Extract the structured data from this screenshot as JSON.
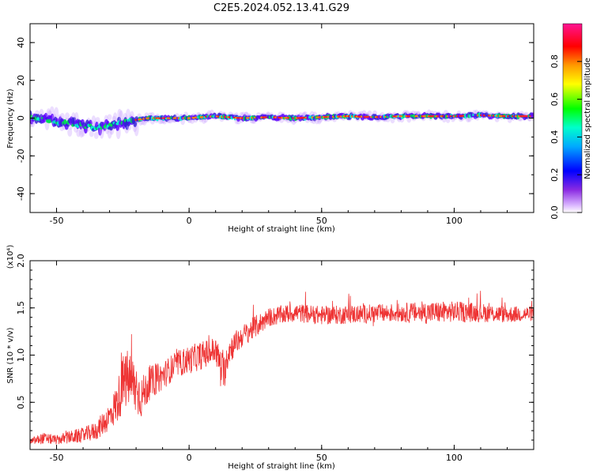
{
  "title": "C2E5.2024.052.13.41.G29",
  "chart_data": [
    {
      "type": "heatmap",
      "xlabel": "Height of straight line (km)",
      "ylabel": "Frequency (Hz)",
      "xlim": [
        -60,
        130
      ],
      "ylim": [
        -50,
        50
      ],
      "xticks": [
        -50,
        0,
        50,
        100
      ],
      "yticks": [
        -40,
        -20,
        0,
        20,
        40
      ],
      "xtick_labels": [
        "-50",
        "0",
        "50",
        "100"
      ],
      "ytick_labels": [
        "-40",
        "-20",
        "0",
        "20",
        "40"
      ],
      "grid": false,
      "colorbar": {
        "label": "Normalized spectral amplitude",
        "range": [
          0,
          1
        ],
        "ticks": [
          0.0,
          0.2,
          0.4,
          0.6,
          0.8
        ],
        "tick_labels": [
          "0.0",
          "0.2",
          "0.4",
          "0.6",
          "0.8"
        ],
        "colors": [
          "#ffffff",
          "#8a2be2",
          "#0000ff",
          "#00ffff",
          "#00ff00",
          "#ffff00",
          "#ff0000",
          "#ff1493"
        ]
      },
      "ridge": {
        "x": [
          -58,
          -50,
          -45,
          -40,
          -35,
          -30,
          -25,
          -20,
          -15,
          -10,
          -5,
          0,
          10,
          20,
          30,
          40,
          50,
          60,
          70,
          80,
          90,
          100,
          110,
          120,
          130
        ],
        "y": [
          0,
          -2,
          -3,
          -4,
          -5,
          -4,
          -2,
          -1,
          0,
          0,
          0,
          0,
          1,
          0,
          0.5,
          0,
          0.5,
          1,
          0.5,
          1,
          1,
          1,
          1.5,
          1,
          1
        ]
      }
    },
    {
      "type": "line",
      "xlabel": "Height of straight line (km)",
      "ylabel": "SNR (10 * v/v)",
      "y_multiplier": "(x10⁴)",
      "xlim": [
        -60,
        130
      ],
      "ylim": [
        0,
        2.0
      ],
      "xticks": [
        -50,
        0,
        50,
        100
      ],
      "yticks": [
        0.5,
        1.0,
        1.5,
        2.0
      ],
      "xtick_labels": [
        "-50",
        "0",
        "50",
        "100"
      ],
      "ytick_labels": [
        "0.5",
        "1.0",
        "1.5",
        "2.0"
      ],
      "grid": false,
      "series": [
        {
          "color": "#ee3333",
          "x": [
            -60,
            -55,
            -50,
            -45,
            -40,
            -35,
            -30,
            -27,
            -25,
            -23,
            -20,
            -18,
            -15,
            -10,
            -5,
            0,
            5,
            10,
            13,
            15,
            20,
            25,
            30,
            40,
            50,
            60,
            70,
            80,
            90,
            100,
            110,
            120,
            130
          ],
          "y": [
            0.08,
            0.12,
            0.1,
            0.13,
            0.15,
            0.2,
            0.35,
            0.5,
            0.7,
            0.75,
            0.65,
            0.55,
            0.7,
            0.78,
            0.9,
            0.95,
            1.0,
            1.05,
            0.8,
            1.05,
            1.2,
            1.3,
            1.4,
            1.45,
            1.42,
            1.43,
            1.44,
            1.45,
            1.45,
            1.46,
            1.45,
            1.43,
            1.44
          ],
          "noise": [
            0.04,
            0.06,
            0.05,
            0.07,
            0.08,
            0.1,
            0.15,
            0.22,
            0.3,
            0.32,
            0.3,
            0.22,
            0.18,
            0.15,
            0.14,
            0.15,
            0.15,
            0.15,
            0.2,
            0.15,
            0.12,
            0.12,
            0.1,
            0.1,
            0.1,
            0.1,
            0.1,
            0.1,
            0.12,
            0.11,
            0.1,
            0.09,
            0.08
          ]
        }
      ]
    }
  ]
}
